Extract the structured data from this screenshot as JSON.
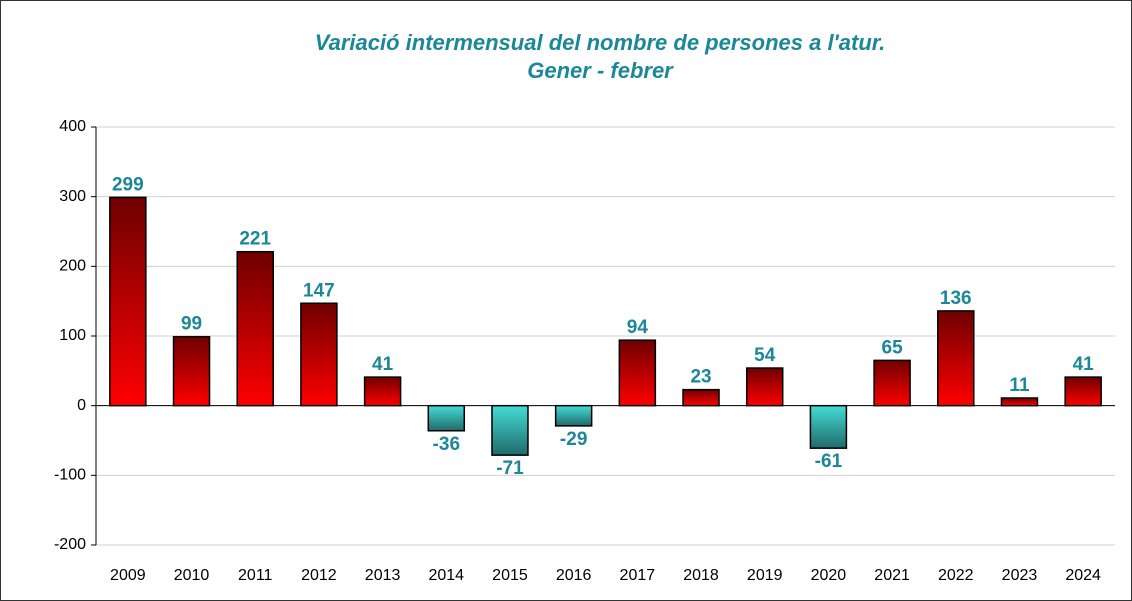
{
  "chart_data": {
    "type": "bar",
    "title": "Variació intermensual del nombre de persones a l'atur.",
    "subtitle": "Gener - febrer",
    "categories": [
      "2009",
      "2010",
      "2011",
      "2012",
      "2013",
      "2014",
      "2015",
      "2016",
      "2017",
      "2018",
      "2019",
      "2020",
      "2021",
      "2022",
      "2023",
      "2024"
    ],
    "values": [
      299,
      99,
      221,
      147,
      41,
      -36,
      -71,
      -29,
      94,
      23,
      54,
      -61,
      65,
      136,
      11,
      41
    ],
    "positive_gradient": [
      "#6e0000",
      "#ff0000"
    ],
    "negative_gradient": [
      "#45dcd6",
      "#206a6a"
    ],
    "label_color": "#1b8797",
    "ylim": [
      -200,
      400
    ],
    "yticks": [
      -200,
      -100,
      0,
      100,
      200,
      300,
      400
    ],
    "grid": true
  }
}
